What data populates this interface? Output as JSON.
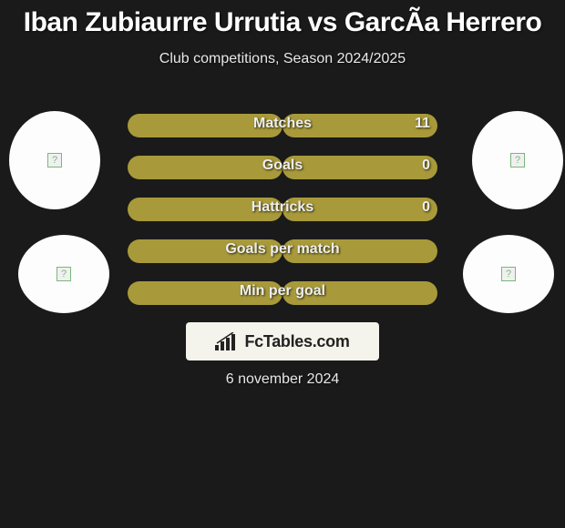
{
  "title": "Iban Zubiaurre Urrutia vs GarcÃ­a Herrero",
  "subtitle": "Club competitions, Season 2024/2025",
  "date": "6 november 2024",
  "footer_brand": "FcTables.com",
  "background_color": "#1a1a1a",
  "bar_color": "#a89a3a",
  "avatar_bg": "#fdfdfd",
  "footer_bg": "#f4f4ec",
  "stats": [
    {
      "label": "Matches",
      "left_val": "",
      "right_val": "11",
      "left_pct": 50,
      "right_pct": 50
    },
    {
      "label": "Goals",
      "left_val": "",
      "right_val": "0",
      "left_pct": 50,
      "right_pct": 50
    },
    {
      "label": "Hattricks",
      "left_val": "",
      "right_val": "0",
      "left_pct": 50,
      "right_pct": 50
    },
    {
      "label": "Goals per match",
      "left_val": "",
      "right_val": "",
      "left_pct": 50,
      "right_pct": 50
    },
    {
      "label": "Min per goal",
      "left_val": "",
      "right_val": "",
      "left_pct": 50,
      "right_pct": 50
    }
  ],
  "avatars": [
    {
      "name": "player1-face",
      "placeholder": "?"
    },
    {
      "name": "player1-club",
      "placeholder": "?"
    },
    {
      "name": "player2-face",
      "placeholder": "?"
    },
    {
      "name": "player2-club",
      "placeholder": "?"
    }
  ]
}
